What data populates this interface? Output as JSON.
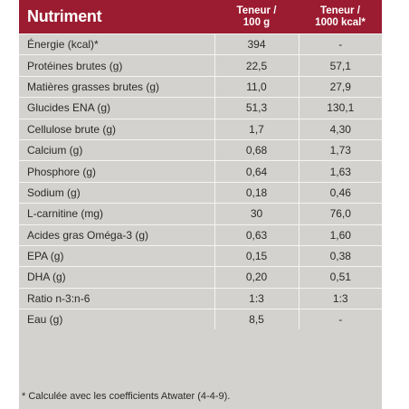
{
  "header": {
    "nutrient": "Nutriment",
    "per100g_line1": "Teneur /",
    "per100g_line2": "100 g",
    "per1000_line1": "Teneur /",
    "per1000_line2": "1000 kcal*"
  },
  "rows": [
    {
      "name": "Énergie (kcal)*",
      "v100": "394",
      "v1000": "-"
    },
    {
      "name": "Protéines brutes (g)",
      "v100": "22,5",
      "v1000": "57,1"
    },
    {
      "name": "Matières grasses brutes (g)",
      "v100": "11,0",
      "v1000": "27,9"
    },
    {
      "name": "Glucides ENA (g)",
      "v100": "51,3",
      "v1000": "130,1"
    },
    {
      "name": "Cellulose brute (g)",
      "v100": "1,7",
      "v1000": "4,30"
    },
    {
      "name": "Calcium (g)",
      "v100": "0,68",
      "v1000": "1,73"
    },
    {
      "name": "Phosphore (g)",
      "v100": "0,64",
      "v1000": "1,63"
    },
    {
      "name": "Sodium (g)",
      "v100": "0,18",
      "v1000": "0,46"
    },
    {
      "name": "L-carnitine (mg)",
      "v100": "30",
      "v1000": "76,0"
    },
    {
      "name": "Acides gras Oméga-3 (g)",
      "v100": "0,63",
      "v1000": "1,60"
    },
    {
      "name": "EPA (g)",
      "v100": "0,15",
      "v1000": "0,38"
    },
    {
      "name": "DHA (g)",
      "v100": "0,20",
      "v1000": "0,51"
    },
    {
      "name": "Ratio n-3:n-6",
      "v100": "1:3",
      "v1000": "1:3"
    },
    {
      "name": "Eau (g)",
      "v100": "8,5",
      "v1000": "-"
    }
  ],
  "footnote": "* Calculée avec les coefficients Atwater (4-4-9).",
  "colors": {
    "header_bg": "#9b1b30",
    "body_bg": "#d3d2ce",
    "divider": "#f4f4f2"
  }
}
